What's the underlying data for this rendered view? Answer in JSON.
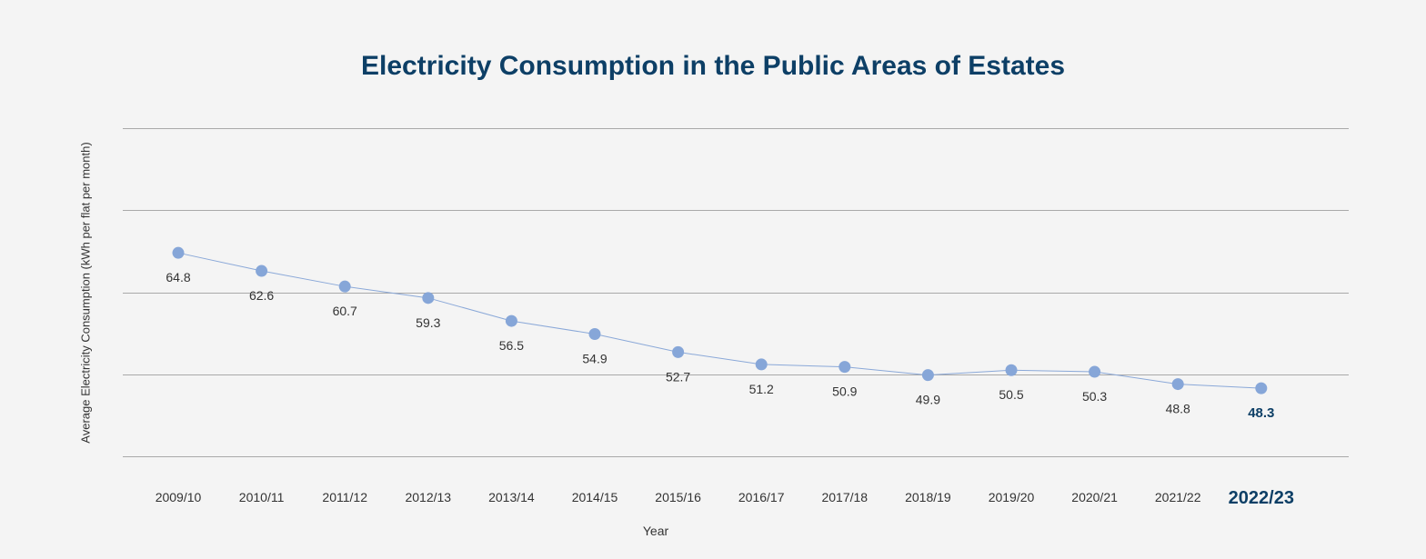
{
  "chart_data": {
    "type": "line",
    "title": "Electricity Consumption in the Public Areas of Estates",
    "xlabel": "Year",
    "ylabel": "Average Electricity Consumption (kWh per flat per month)",
    "categories": [
      "2009/10",
      "2010/11",
      "2011/12",
      "2012/13",
      "2013/14",
      "2014/15",
      "2015/16",
      "2016/17",
      "2017/18",
      "2018/19",
      "2019/20",
      "2020/21",
      "2021/22",
      "2022/23"
    ],
    "series": [
      {
        "values": [
          64.8,
          62.6,
          60.7,
          59.3,
          56.5,
          54.9,
          52.7,
          51.2,
          50.9,
          49.9,
          50.5,
          50.3,
          48.8,
          48.3
        ]
      }
    ],
    "highlight_index": 13,
    "ylim": [
      40,
      80
    ],
    "grid": true,
    "colors": {
      "series": "#86a6d8",
      "title": "#0d3f66",
      "highlight": "#0d3f66",
      "gridline": "#a9a9a9"
    }
  }
}
